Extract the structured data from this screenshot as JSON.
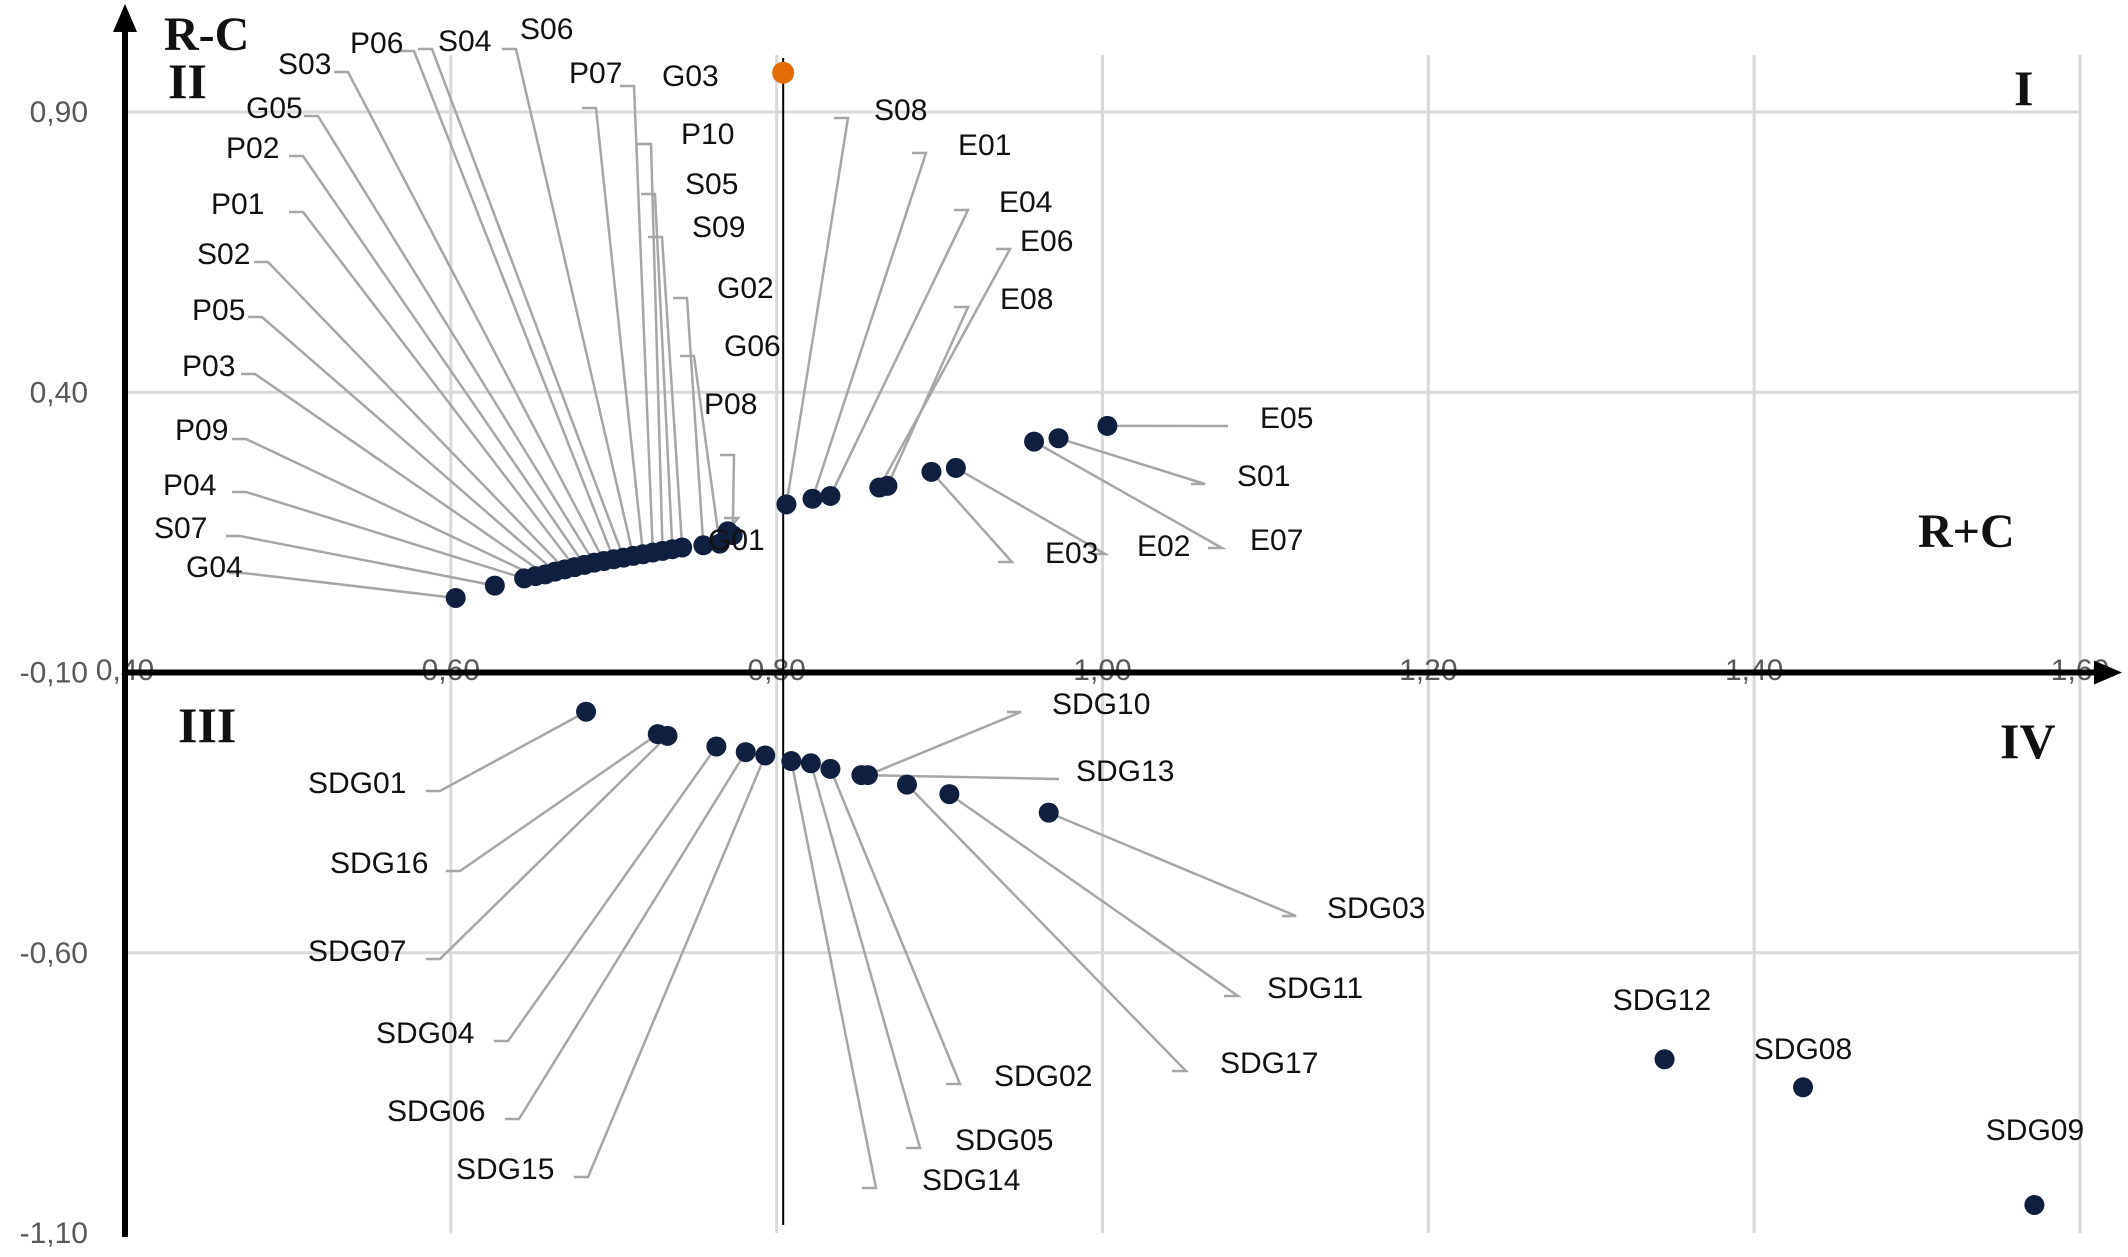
{
  "chart_data": {
    "type": "scatter",
    "x_axis_title": "R+C",
    "y_axis_title": "R-C",
    "xlim": [
      0.4,
      1.6
    ],
    "ylim": [
      -1.1,
      1.0
    ],
    "x_ticks": [
      "0,40",
      "0,60",
      "0,80",
      "1,00",
      "1,20",
      "1,40",
      "1,60"
    ],
    "y_ticks": [
      "0,90",
      "0,40",
      "-0,10",
      "-0,60",
      "-1,10"
    ],
    "grid": true,
    "quadrants": {
      "I": "I",
      "II": "II",
      "III": "III",
      "IV": "IV"
    },
    "mean_line_x": 0.804,
    "reference_point": {
      "x": 0.804,
      "y": 0.97,
      "color": "#E36C09"
    },
    "point_color": "#0F1F3D",
    "points": [
      {
        "label": "G04",
        "x": 0.603,
        "y": 0.033
      },
      {
        "label": "S07",
        "x": 0.627,
        "y": 0.055
      },
      {
        "label": "P04",
        "x": 0.645,
        "y": 0.068
      },
      {
        "label": "P09",
        "x": 0.652,
        "y": 0.072
      },
      {
        "label": "P03",
        "x": 0.658,
        "y": 0.075
      },
      {
        "label": "P05",
        "x": 0.664,
        "y": 0.08
      },
      {
        "label": "S02",
        "x": 0.67,
        "y": 0.084
      },
      {
        "label": "P01",
        "x": 0.676,
        "y": 0.088
      },
      {
        "label": "P02",
        "x": 0.682,
        "y": 0.092
      },
      {
        "label": "G05",
        "x": 0.688,
        "y": 0.096
      },
      {
        "label": "S03",
        "x": 0.694,
        "y": 0.099
      },
      {
        "label": "P06",
        "x": 0.7,
        "y": 0.102
      },
      {
        "label": "S04",
        "x": 0.706,
        "y": 0.105
      },
      {
        "label": "S06",
        "x": 0.712,
        "y": 0.108
      },
      {
        "label": "P07",
        "x": 0.718,
        "y": 0.111
      },
      {
        "label": "G03",
        "x": 0.724,
        "y": 0.114
      },
      {
        "label": "P10",
        "x": 0.73,
        "y": 0.117
      },
      {
        "label": "S05",
        "x": 0.736,
        "y": 0.12
      },
      {
        "label": "S09",
        "x": 0.742,
        "y": 0.123
      },
      {
        "label": "G02",
        "x": 0.755,
        "y": 0.127
      },
      {
        "label": "G06",
        "x": 0.765,
        "y": 0.13
      },
      {
        "label": "P08",
        "x": 0.773,
        "y": 0.145
      },
      {
        "label": "G01",
        "x": 0.77,
        "y": 0.152
      },
      {
        "label": "S08",
        "x": 0.806,
        "y": 0.2
      },
      {
        "label": "E01",
        "x": 0.822,
        "y": 0.21
      },
      {
        "label": "E04",
        "x": 0.833,
        "y": 0.215
      },
      {
        "label": "E06",
        "x": 0.863,
        "y": 0.23
      },
      {
        "label": "E08",
        "x": 0.868,
        "y": 0.233
      },
      {
        "label": "E03",
        "x": 0.895,
        "y": 0.258
      },
      {
        "label": "E02",
        "x": 0.91,
        "y": 0.265
      },
      {
        "label": "E07",
        "x": 0.958,
        "y": 0.312
      },
      {
        "label": "S01",
        "x": 0.973,
        "y": 0.318
      },
      {
        "label": "E05",
        "x": 1.003,
        "y": 0.34
      },
      {
        "label": "SDG01",
        "x": 0.683,
        "y": -0.17
      },
      {
        "label": "SDG16",
        "x": 0.727,
        "y": -0.21
      },
      {
        "label": "SDG07",
        "x": 0.733,
        "y": -0.213
      },
      {
        "label": "SDG04",
        "x": 0.763,
        "y": -0.232
      },
      {
        "label": "SDG06",
        "x": 0.781,
        "y": -0.242
      },
      {
        "label": "SDG15",
        "x": 0.793,
        "y": -0.248
      },
      {
        "label": "SDG14",
        "x": 0.809,
        "y": -0.258
      },
      {
        "label": "SDG05",
        "x": 0.821,
        "y": -0.262
      },
      {
        "label": "SDG02",
        "x": 0.833,
        "y": -0.272
      },
      {
        "label": "SDG13",
        "x": 0.852,
        "y": -0.283
      },
      {
        "label": "SDG10",
        "x": 0.856,
        "y": -0.283
      },
      {
        "label": "SDG17",
        "x": 0.88,
        "y": -0.3
      },
      {
        "label": "SDG11",
        "x": 0.906,
        "y": -0.317
      },
      {
        "label": "SDG03",
        "x": 0.967,
        "y": -0.35
      },
      {
        "label": "SDG12",
        "x": 1.345,
        "y": -0.79
      },
      {
        "label": "SDG08",
        "x": 1.43,
        "y": -0.84
      },
      {
        "label": "SDG09",
        "x": 1.572,
        "y": -1.05
      }
    ]
  }
}
